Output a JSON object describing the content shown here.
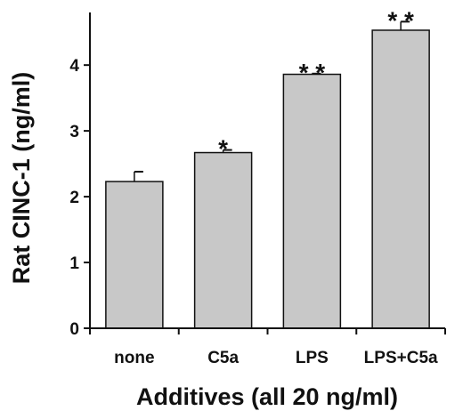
{
  "chart_data": {
    "type": "bar",
    "title": "",
    "xlabel": "Additives (all 20 ng/ml)",
    "ylabel": "Rat CINC-1 (ng/ml)",
    "ylim": [
      0,
      4.8
    ],
    "yticks": [
      "0",
      "1",
      "2",
      "3",
      "4"
    ],
    "categories": [
      "none",
      "C5a",
      "LPS",
      "LPS+C5a"
    ],
    "values": [
      2.23,
      2.67,
      3.86,
      4.53
    ],
    "error": [
      0.15,
      0.04,
      0.01,
      0.13
    ],
    "significance": [
      "",
      "*",
      "* *",
      "* *"
    ],
    "bar_color": "#c8c8c8",
    "grid": false,
    "legend": "none"
  }
}
